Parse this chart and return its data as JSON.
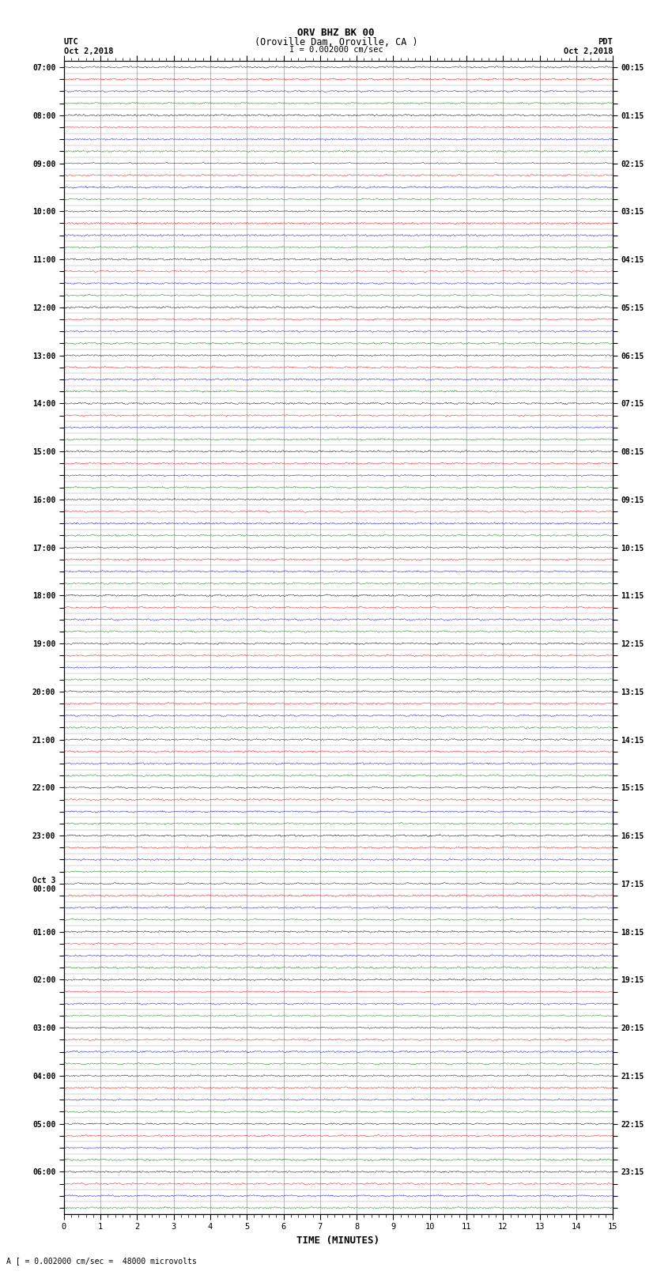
{
  "title_line1": "ORV BHZ BK 00",
  "title_line2": "(Oroville Dam, Oroville, CA )",
  "scale_text": "I = 0.002000 cm/sec",
  "footer_text": "A [ = 0.002000 cm/sec =  48000 microvolts",
  "utc_label": "UTC",
  "utc_date": "Oct 2,2018",
  "pdt_label": "PDT",
  "pdt_date": "Oct 2,2018",
  "xlabel": "TIME (MINUTES)",
  "xlim": [
    0,
    15
  ],
  "xticks": [
    0,
    1,
    2,
    3,
    4,
    5,
    6,
    7,
    8,
    9,
    10,
    11,
    12,
    13,
    14,
    15
  ],
  "num_rows": 96,
  "trace_colors": [
    "black",
    "red",
    "blue",
    "green"
  ],
  "amplitude": 0.3,
  "noise_seed": 42,
  "bg_color": "white",
  "grid_color": "#999999",
  "fig_width": 8.5,
  "fig_height": 16.13,
  "left_time_labels": [
    "07:00",
    "",
    "",
    "",
    "08:00",
    "",
    "",
    "",
    "09:00",
    "",
    "",
    "",
    "10:00",
    "",
    "",
    "",
    "11:00",
    "",
    "",
    "",
    "12:00",
    "",
    "",
    "",
    "13:00",
    "",
    "",
    "",
    "14:00",
    "",
    "",
    "",
    "15:00",
    "",
    "",
    "",
    "16:00",
    "",
    "",
    "",
    "17:00",
    "",
    "",
    "",
    "18:00",
    "",
    "",
    "",
    "19:00",
    "",
    "",
    "",
    "20:00",
    "",
    "",
    "",
    "21:00",
    "",
    "",
    "",
    "22:00",
    "",
    "",
    "",
    "23:00",
    "",
    "",
    "",
    "Oct 3\n00:00",
    "",
    "",
    "",
    "01:00",
    "",
    "",
    "",
    "02:00",
    "",
    "",
    "",
    "03:00",
    "",
    "",
    "",
    "04:00",
    "",
    "",
    "",
    "05:00",
    "",
    "",
    "",
    "06:00",
    "",
    "",
    ""
  ],
  "right_time_labels": [
    "00:15",
    "",
    "",
    "",
    "01:15",
    "",
    "",
    "",
    "02:15",
    "",
    "",
    "",
    "03:15",
    "",
    "",
    "",
    "04:15",
    "",
    "",
    "",
    "05:15",
    "",
    "",
    "",
    "06:15",
    "",
    "",
    "",
    "07:15",
    "",
    "",
    "",
    "08:15",
    "",
    "",
    "",
    "09:15",
    "",
    "",
    "",
    "10:15",
    "",
    "",
    "",
    "11:15",
    "",
    "",
    "",
    "12:15",
    "",
    "",
    "",
    "13:15",
    "",
    "",
    "",
    "14:15",
    "",
    "",
    "",
    "15:15",
    "",
    "",
    "",
    "16:15",
    "",
    "",
    "",
    "17:15",
    "",
    "",
    "",
    "18:15",
    "",
    "",
    "",
    "19:15",
    "",
    "",
    "",
    "20:15",
    "",
    "",
    "",
    "21:15",
    "",
    "",
    "",
    "22:15",
    "",
    "",
    "",
    "23:15",
    "",
    "",
    ""
  ]
}
